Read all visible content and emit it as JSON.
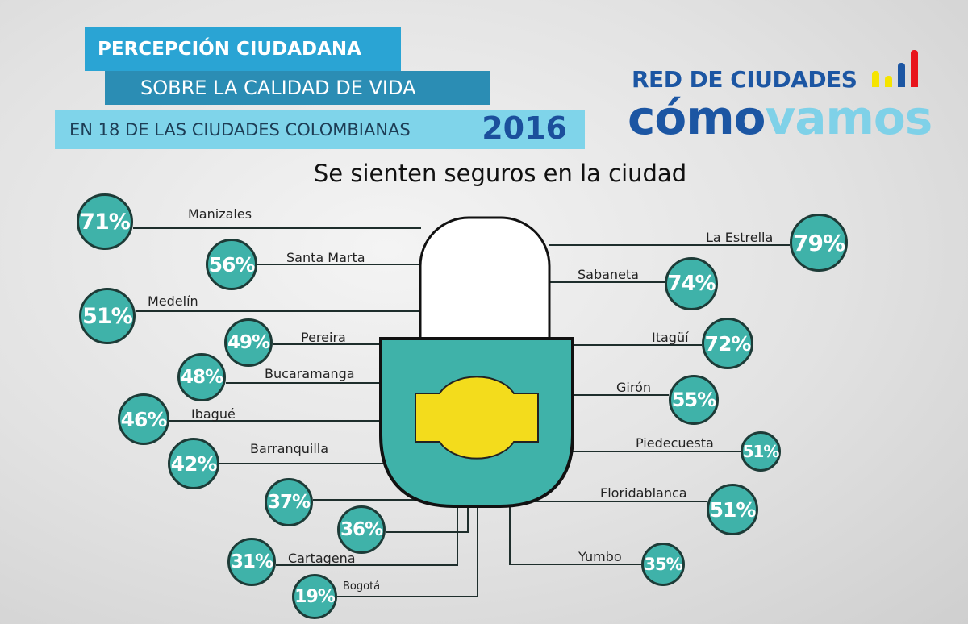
{
  "header": {
    "line1": "PERCEPCIÓN CIUDADANA",
    "line2": "SOBRE LA CALIDAD DE VIDA",
    "line3": "EN 18 DE LAS CIUDADES COLOMBIANAS",
    "year": "2016"
  },
  "logo": {
    "top": "RED DE CIUDADES",
    "word_a": "cómo",
    "word_b": "vamos",
    "bar_colors": [
      "#f5e400",
      "#f5e400",
      "#1c56a3",
      "#e8141c"
    ]
  },
  "colors": {
    "bubble": "#3fb2a9",
    "lock_body": "#3fb2a9",
    "keyhole": "#f3dc1c"
  },
  "chart_data": {
    "type": "table",
    "title": "Se sienten seguros en la ciudad",
    "unit": "%",
    "left": [
      {
        "city": "Manizales",
        "value": "71%"
      },
      {
        "city": "Santa Marta",
        "value": "56%"
      },
      {
        "city": "Medelín",
        "value": "51%"
      },
      {
        "city": "Pereira",
        "value": "49%"
      },
      {
        "city": "Bucaramanga",
        "value": "48%"
      },
      {
        "city": "Ibagué",
        "value": "46%"
      },
      {
        "city": "Barranquilla",
        "value": "42%"
      },
      {
        "city": "",
        "value": "37%"
      },
      {
        "city": "",
        "value": "36%"
      },
      {
        "city": "Cartagena",
        "value": "31%"
      },
      {
        "city": "Bogotá",
        "value": "19%"
      }
    ],
    "right": [
      {
        "city": "La Estrella",
        "value": "79%"
      },
      {
        "city": "Sabaneta",
        "value": "74%"
      },
      {
        "city": "Itagüí",
        "value": "72%"
      },
      {
        "city": "Girón",
        "value": "55%"
      },
      {
        "city": "Piedecuesta",
        "value": "51%"
      },
      {
        "city": "Floridablanca",
        "value": "51%"
      },
      {
        "city": "Yumbo",
        "value": "35%"
      }
    ]
  }
}
